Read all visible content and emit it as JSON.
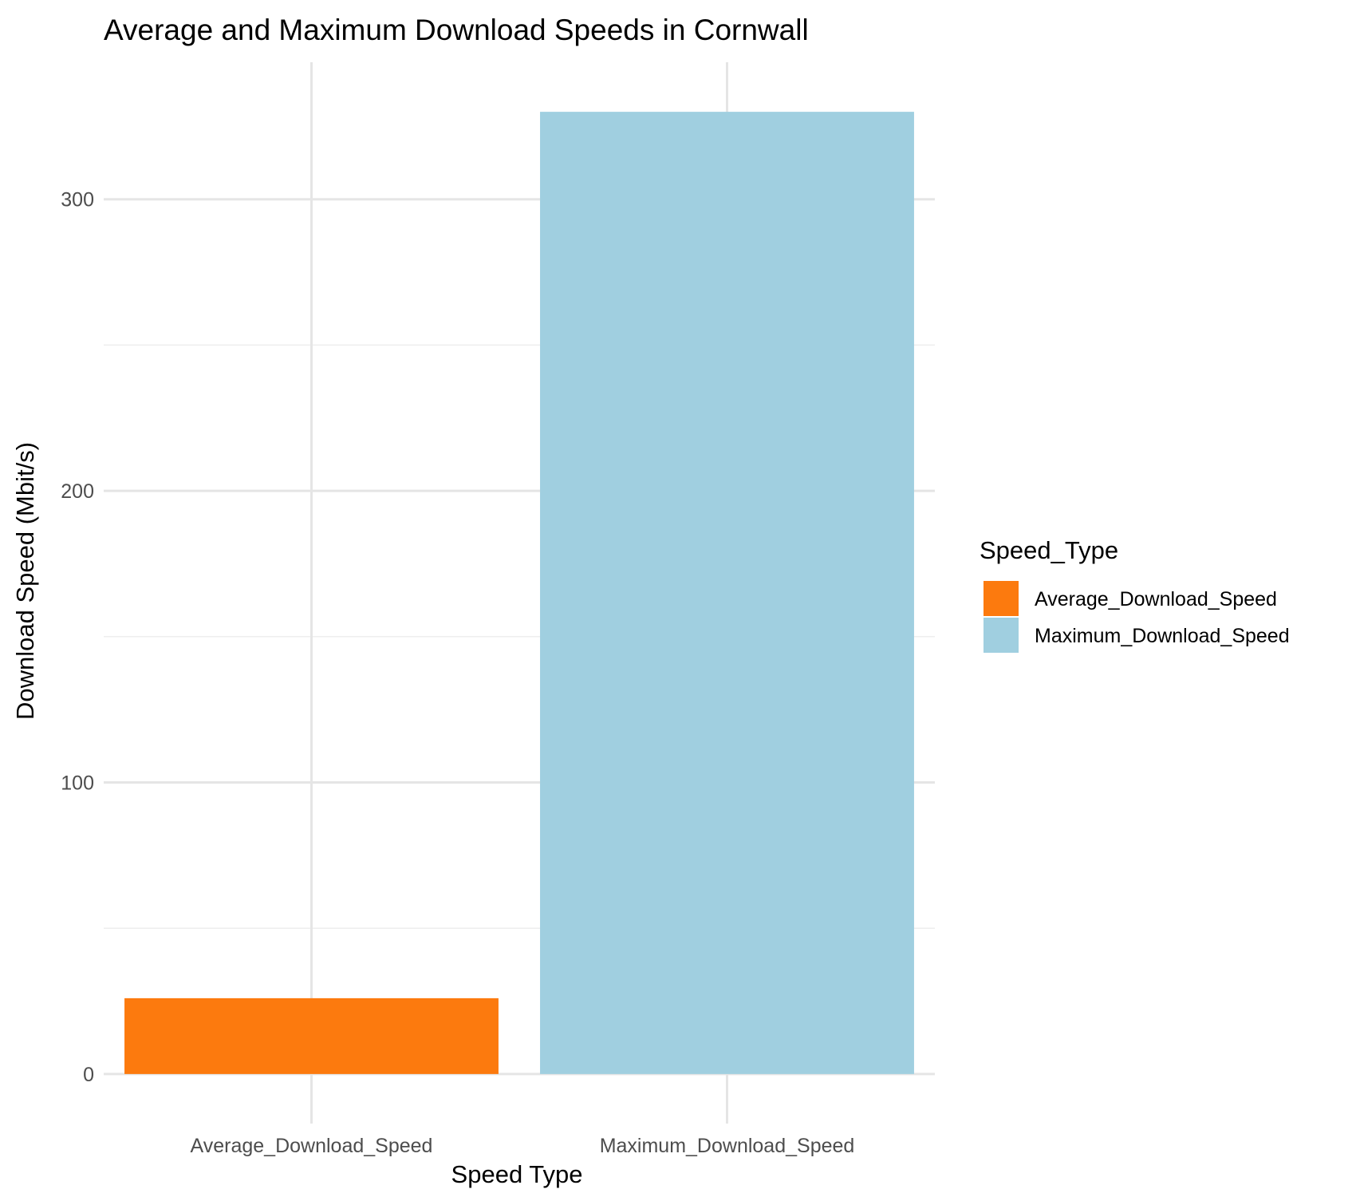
{
  "chart_data": {
    "type": "bar",
    "title": "Average and Maximum Download Speeds in Cornwall",
    "xlabel": "Speed Type",
    "ylabel": "Download Speed (Mbit/s)",
    "categories": [
      "Average_Download_Speed",
      "Maximum_Download_Speed"
    ],
    "values": [
      26,
      330
    ],
    "colors": [
      "#fc7a0e",
      "#a0cfe0"
    ],
    "ylim": [
      -17,
      347
    ],
    "yticks": [
      0,
      100,
      200,
      300
    ],
    "yminor": [
      50,
      150,
      250
    ],
    "grid": true,
    "legend": {
      "title": "Speed_Type",
      "placement": "right",
      "entries": [
        "Average_Download_Speed",
        "Maximum_Download_Speed"
      ]
    }
  }
}
